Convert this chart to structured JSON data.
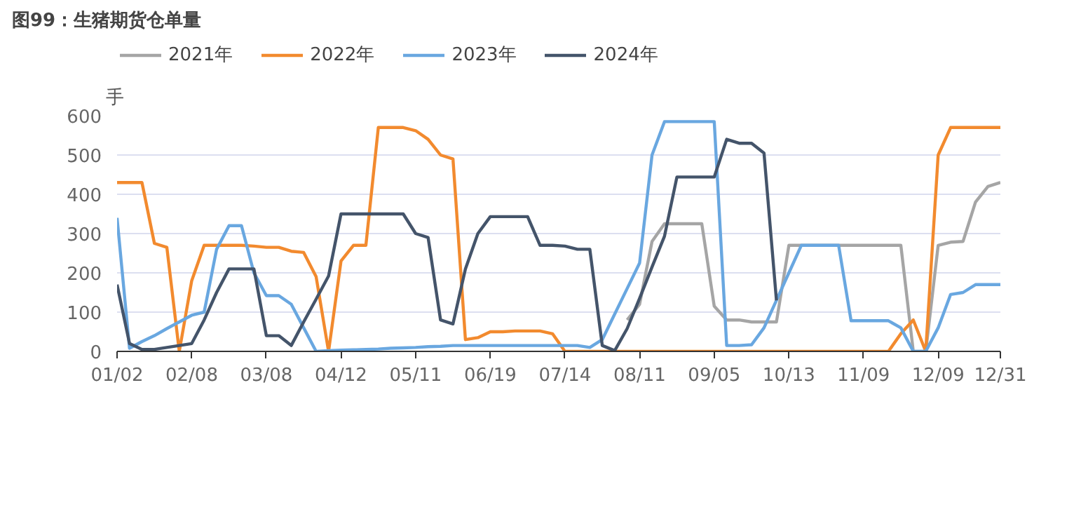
{
  "chart_data": {
    "type": "line",
    "title": "图99：生猪期货仓单量",
    "ylabel": "手",
    "categories": [
      "01/02",
      null,
      null,
      null,
      null,
      null,
      "02/08",
      null,
      null,
      null,
      null,
      null,
      "03/08",
      null,
      null,
      null,
      null,
      null,
      "04/12",
      null,
      null,
      null,
      null,
      null,
      "05/11",
      null,
      null,
      null,
      null,
      null,
      "06/19",
      null,
      null,
      null,
      null,
      null,
      "07/14",
      null,
      null,
      null,
      null,
      null,
      "08/11",
      null,
      null,
      null,
      null,
      null,
      "09/05",
      null,
      null,
      null,
      null,
      null,
      "10/13",
      null,
      null,
      null,
      null,
      null,
      "11/09",
      null,
      null,
      null,
      null,
      null,
      "12/09",
      null,
      null,
      null,
      null,
      "12/31"
    ],
    "series": [
      {
        "name": "2021年",
        "color": "#a5a5a5",
        "values": [
          null,
          null,
          null,
          null,
          null,
          null,
          null,
          null,
          null,
          null,
          null,
          null,
          null,
          null,
          null,
          null,
          null,
          null,
          null,
          null,
          null,
          null,
          null,
          null,
          null,
          null,
          null,
          null,
          null,
          null,
          null,
          null,
          null,
          null,
          null,
          null,
          null,
          null,
          null,
          null,
          null,
          80,
          120,
          280,
          325,
          325,
          325,
          325,
          115,
          80,
          80,
          75,
          75,
          75,
          270,
          270,
          270,
          270,
          270,
          270,
          270,
          270,
          270,
          270,
          0,
          0,
          270,
          278,
          280,
          380,
          420,
          430
        ]
      },
      {
        "name": "2022年",
        "color": "#f28a2e",
        "values": [
          430,
          430,
          430,
          275,
          265,
          0,
          180,
          270,
          270,
          270,
          270,
          268,
          265,
          265,
          255,
          252,
          190,
          0,
          230,
          270,
          270,
          570,
          570,
          570,
          562,
          540,
          500,
          490,
          30,
          35,
          50,
          50,
          52,
          52,
          52,
          45,
          0,
          0,
          0,
          0,
          0,
          0,
          0,
          0,
          0,
          0,
          0,
          0,
          0,
          0,
          0,
          0,
          0,
          0,
          0,
          0,
          0,
          0,
          0,
          0,
          0,
          0,
          0,
          45,
          80,
          0,
          500,
          570,
          570,
          570,
          570,
          570
        ]
      },
      {
        "name": "2023年",
        "color": "#69a7e0",
        "values": [
          340,
          8,
          25,
          40,
          58,
          75,
          92,
          100,
          260,
          320,
          320,
          200,
          142,
          142,
          120,
          60,
          0,
          2,
          3,
          4,
          5,
          6,
          8,
          9,
          10,
          12,
          13,
          15,
          15,
          15,
          15,
          15,
          15,
          15,
          15,
          15,
          15,
          15,
          10,
          30,
          95,
          160,
          225,
          500,
          585,
          585,
          585,
          585,
          585,
          15,
          15,
          17,
          60,
          130,
          200,
          270,
          270,
          270,
          270,
          78,
          78,
          78,
          78,
          60,
          0,
          0,
          60,
          145,
          150,
          170,
          170,
          170
        ]
      },
      {
        "name": "2024年",
        "color": "#44546a",
        "values": [
          170,
          20,
          5,
          5,
          10,
          15,
          20,
          80,
          150,
          210,
          210,
          210,
          40,
          40,
          15,
          75,
          133,
          192,
          350,
          350,
          350,
          350,
          350,
          350,
          300,
          290,
          80,
          70,
          210,
          300,
          343,
          343,
          343,
          343,
          270,
          270,
          268,
          260,
          260,
          15,
          2,
          58,
          135,
          215,
          293,
          444,
          444,
          444,
          444,
          540,
          530,
          530,
          505,
          130,
          null,
          null,
          null,
          null,
          null,
          null,
          null,
          null,
          null,
          null,
          null,
          null,
          null,
          null,
          null,
          null,
          null,
          null
        ]
      }
    ],
    "ylim": [
      0,
      600
    ],
    "yticks": [
      0,
      100,
      200,
      300,
      400,
      500,
      600
    ],
    "grid": "y",
    "legend": "top left",
    "line_style": "solid"
  }
}
